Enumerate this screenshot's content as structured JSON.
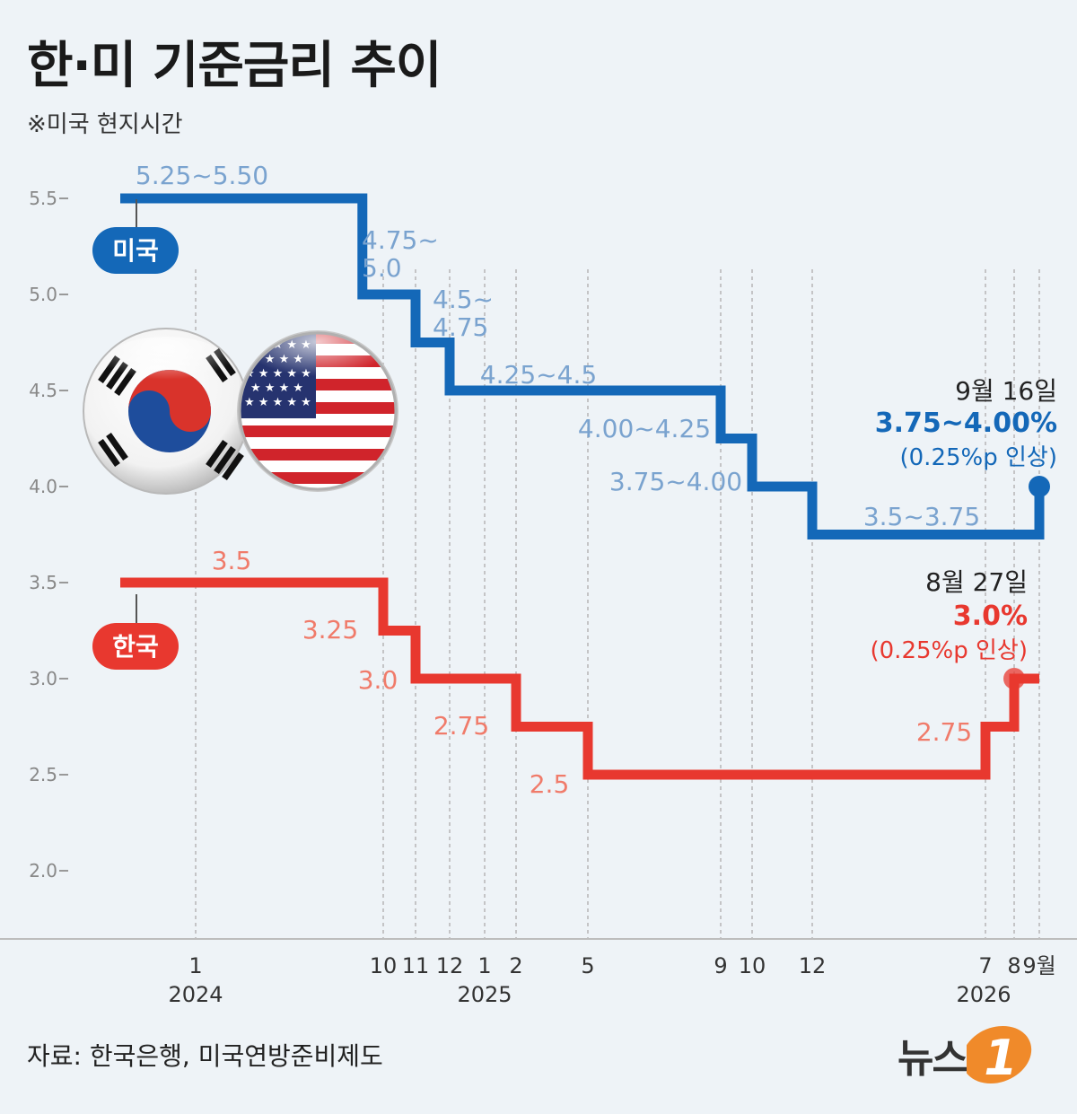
{
  "title": "한·미 기준금리 추이",
  "note": "※미국 현지시간",
  "source": "자료: 한국은행, 미국연방준비제도",
  "logo": "뉴스",
  "colors": {
    "us": "#1468b8",
    "kr": "#e8382f",
    "us_label": "#7aa3cf",
    "kr_label": "#f07b6a"
  },
  "chart_data": {
    "type": "line",
    "step": true,
    "ylim": [
      2.0,
      5.5
    ],
    "yticks": [
      "5.5",
      "5.0",
      "4.5",
      "4.0",
      "3.5",
      "3.0",
      "2.5",
      "2.0"
    ],
    "x_ticks": [
      {
        "label": "1",
        "year": "2024"
      },
      {
        "label": "10"
      },
      {
        "label": "11"
      },
      {
        "label": "12"
      },
      {
        "label": "1",
        "year": "2025"
      },
      {
        "label": "2"
      },
      {
        "label": "5"
      },
      {
        "label": "9"
      },
      {
        "label": "10"
      },
      {
        "label": "12"
      },
      {
        "label": "7",
        "year": "2026"
      },
      {
        "label": "8"
      },
      {
        "label": "9월"
      }
    ],
    "series": [
      {
        "name": "미국",
        "color": "#1468b8",
        "points": [
          {
            "date": "2023-11",
            "value": 5.5
          },
          {
            "date": "2024-09",
            "value": 5.0,
            "label": "4.75~5.0"
          },
          {
            "date": "2024-11",
            "value": 4.75,
            "label": "4.5~4.75"
          },
          {
            "date": "2024-12",
            "value": 4.5,
            "label": "4.25~4.5"
          },
          {
            "date": "2025-09",
            "value": 4.25,
            "label": "4.00~4.25"
          },
          {
            "date": "2025-10",
            "value": 4.0,
            "label": "3.75~4.00"
          },
          {
            "date": "2025-12",
            "value": 3.75,
            "label": "3.5~3.75"
          },
          {
            "date": "2026-09",
            "value": 4.0
          }
        ],
        "first_label": "5.25~5.50",
        "annotation": {
          "date": "9월 16일",
          "value": "3.75~4.00%",
          "change": "(0.25%p 인상)"
        }
      },
      {
        "name": "한국",
        "color": "#e8382f",
        "points": [
          {
            "date": "2023-11",
            "value": 3.5,
            "label": "3.5"
          },
          {
            "date": "2024-10",
            "value": 3.25,
            "label": "3.25"
          },
          {
            "date": "2024-11",
            "value": 3.0,
            "label": "3.0"
          },
          {
            "date": "2025-02",
            "value": 2.75,
            "label": "2.75"
          },
          {
            "date": "2025-05",
            "value": 2.5,
            "label": "2.5"
          },
          {
            "date": "2026-07",
            "value": 2.75,
            "label": "2.75"
          },
          {
            "date": "2026-08",
            "value": 3.0
          },
          {
            "date": "2026-09",
            "value": 3.0
          }
        ],
        "annotation": {
          "date": "8월 27일",
          "value": "3.0%",
          "change": "(0.25%p 인상)"
        }
      }
    ]
  }
}
